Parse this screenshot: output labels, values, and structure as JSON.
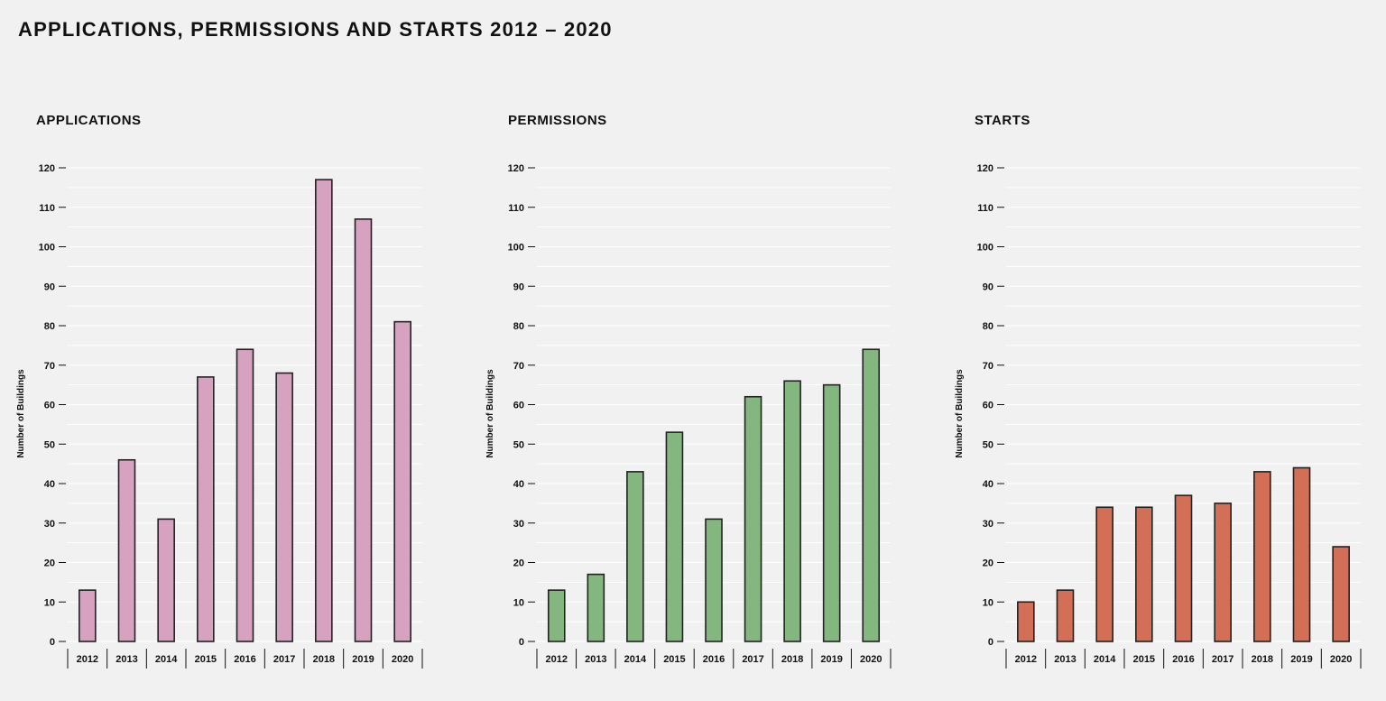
{
  "page": {
    "title": "APPLICATIONS, PERMISSIONS AND STARTS 2012 – 2020"
  },
  "chart_data": [
    {
      "type": "bar",
      "title": "APPLICATIONS",
      "ylabel": "Number of Buildings",
      "xlabel": "",
      "categories": [
        "2012",
        "2013",
        "2014",
        "2015",
        "2016",
        "2017",
        "2018",
        "2019",
        "2020"
      ],
      "values": [
        13,
        46,
        31,
        67,
        74,
        68,
        117,
        107,
        81
      ],
      "ylim": [
        0,
        120
      ],
      "yticks": [
        0,
        10,
        20,
        30,
        40,
        50,
        60,
        70,
        80,
        90,
        100,
        110,
        120
      ],
      "color": "#d7a1c0",
      "grid": true
    },
    {
      "type": "bar",
      "title": "PERMISSIONS",
      "ylabel": "Number of Buildings",
      "xlabel": "",
      "categories": [
        "2012",
        "2013",
        "2014",
        "2015",
        "2016",
        "2017",
        "2018",
        "2019",
        "2020"
      ],
      "values": [
        13,
        17,
        43,
        53,
        31,
        62,
        66,
        65,
        74
      ],
      "ylim": [
        0,
        120
      ],
      "yticks": [
        0,
        10,
        20,
        30,
        40,
        50,
        60,
        70,
        80,
        90,
        100,
        110,
        120
      ],
      "color": "#84b77f",
      "grid": true
    },
    {
      "type": "bar",
      "title": "STARTS",
      "ylabel": "Number of Buildings",
      "xlabel": "",
      "categories": [
        "2012",
        "2013",
        "2014",
        "2015",
        "2016",
        "2017",
        "2018",
        "2019",
        "2020"
      ],
      "values": [
        10,
        13,
        34,
        34,
        37,
        35,
        43,
        44,
        24
      ],
      "ylim": [
        0,
        120
      ],
      "yticks": [
        0,
        10,
        20,
        30,
        40,
        50,
        60,
        70,
        80,
        90,
        100,
        110,
        120
      ],
      "color": "#d36f57",
      "grid": true
    }
  ]
}
